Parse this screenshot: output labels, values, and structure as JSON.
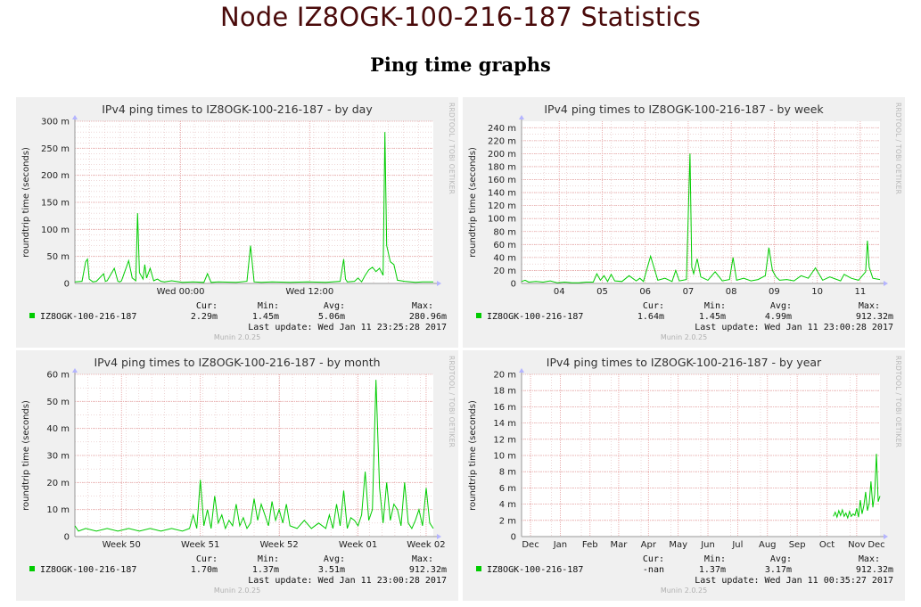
{
  "page": {
    "title": "Node IZ8OGK-100-216-187 Statistics",
    "section": "Ping time graphs"
  },
  "colors": {
    "series": "#00cc00",
    "grid_major": "#e6a0a0",
    "grid_minor": "#dcb0b0",
    "panel_bg": "#f0f0f0",
    "plot_bg": "#ffffff",
    "title": "#4a0a0a"
  },
  "chart_data": [
    {
      "type": "line",
      "title": "IPv4 ping times to IZ8OGK-100-216-187 - by day",
      "ylabel": "roundtrip time (seconds)",
      "xlabel": "",
      "ylim": [
        0,
        300
      ],
      "yticks": [
        0,
        50,
        100,
        150,
        200,
        250,
        300
      ],
      "ytick_labels": [
        "0",
        "50 m",
        "100 m",
        "150 m",
        "200 m",
        "250 m",
        "300 m"
      ],
      "xlim": [
        0,
        100
      ],
      "xticks": [
        {
          "pos": 29.5,
          "label": "Wed 00:00"
        },
        {
          "pos": 65.5,
          "label": "Wed 12:00"
        }
      ],
      "xgrid_minor": 24,
      "ygrid_minor": 30,
      "series": [
        {
          "name": "IZ8OGK-100-216-187",
          "x": [
            0,
            2,
            3,
            3.5,
            4,
            5,
            6,
            8,
            8.5,
            9,
            11,
            12,
            12.5,
            13,
            15,
            16,
            17,
            17.5,
            18,
            19,
            19.5,
            20,
            21,
            22,
            23,
            24,
            25,
            27,
            30,
            33,
            36,
            37,
            38,
            40,
            45,
            48,
            49,
            50,
            52,
            55,
            60,
            65,
            70,
            74,
            75,
            75.5,
            76,
            78,
            79,
            80,
            81,
            82,
            83,
            84,
            85,
            86,
            86.5,
            87,
            88,
            89,
            90,
            92,
            95,
            97,
            100
          ],
          "y": [
            3,
            4,
            40,
            45,
            8,
            3,
            4,
            18,
            4,
            5,
            28,
            4,
            3,
            5,
            42,
            10,
            5,
            130,
            20,
            8,
            35,
            10,
            28,
            5,
            8,
            4,
            3,
            5,
            2,
            3,
            2,
            18,
            2,
            3,
            2,
            4,
            70,
            3,
            2,
            3,
            2,
            3,
            2,
            4,
            45,
            8,
            3,
            4,
            10,
            3,
            15,
            25,
            30,
            22,
            28,
            15,
            280,
            70,
            40,
            35,
            6,
            4,
            2,
            3,
            3
          ]
        }
      ]
    },
    {
      "type": "line",
      "title": "IPv4 ping times to IZ8OGK-100-216-187 - by week",
      "ylabel": "roundtrip time (seconds)",
      "xlabel": "",
      "ylim": [
        0,
        250
      ],
      "yticks": [
        0,
        20,
        40,
        60,
        80,
        100,
        120,
        140,
        160,
        180,
        200,
        220,
        240
      ],
      "ytick_labels": [
        "0",
        "20 m",
        "40 m",
        "60 m",
        "80 m",
        "100 m",
        "120 m",
        "140 m",
        "160 m",
        "180 m",
        "200 m",
        "220 m",
        "240 m"
      ],
      "xlim": [
        0,
        100
      ],
      "xticks": [
        {
          "pos": 10.5,
          "label": "04"
        },
        {
          "pos": 22.5,
          "label": "05"
        },
        {
          "pos": 34.5,
          "label": "06"
        },
        {
          "pos": 46.5,
          "label": "07"
        },
        {
          "pos": 58.5,
          "label": "08"
        },
        {
          "pos": 70.5,
          "label": "09"
        },
        {
          "pos": 82.5,
          "label": "10"
        },
        {
          "pos": 94.5,
          "label": "11"
        }
      ],
      "xgrid_minor": 16,
      "ygrid_minor": 25,
      "series": [
        {
          "name": "IZ8OGK-100-216-187",
          "x": [
            0,
            1,
            2,
            4,
            6,
            8,
            10,
            12,
            14,
            16,
            18,
            20,
            21,
            22,
            23,
            24,
            25,
            26,
            28,
            30,
            32,
            33,
            34,
            36,
            38,
            40,
            42,
            43,
            44,
            46,
            47,
            47.5,
            48,
            49,
            50,
            52,
            54,
            56,
            58,
            59,
            60,
            62,
            64,
            66,
            68,
            69,
            70,
            71,
            72,
            74,
            76,
            78,
            80,
            82,
            84,
            86,
            88,
            89,
            90,
            92,
            94,
            96,
            96.5,
            97,
            98,
            100
          ],
          "y": [
            3,
            5,
            2,
            3,
            2,
            4,
            1,
            2,
            1,
            1,
            2,
            2,
            15,
            5,
            12,
            3,
            14,
            4,
            3,
            12,
            4,
            8,
            3,
            42,
            5,
            8,
            3,
            20,
            4,
            6,
            200,
            25,
            15,
            38,
            10,
            5,
            18,
            4,
            6,
            40,
            5,
            8,
            4,
            6,
            12,
            55,
            20,
            10,
            5,
            6,
            4,
            12,
            8,
            24,
            5,
            10,
            6,
            4,
            14,
            8,
            5,
            18,
            66,
            25,
            8,
            6
          ]
        }
      ]
    },
    {
      "type": "line",
      "title": "IPv4 ping times to IZ8OGK-100-216-187 - by month",
      "ylabel": "roundtrip time (seconds)",
      "xlabel": "",
      "ylim": [
        0,
        60
      ],
      "yticks": [
        0,
        10,
        20,
        30,
        40,
        50,
        60
      ],
      "ytick_labels": [
        "0",
        "10 m",
        "20 m",
        "30 m",
        "40 m",
        "50 m",
        "60 m"
      ],
      "xlim": [
        0,
        100
      ],
      "xticks": [
        {
          "pos": 13,
          "label": "Week 50"
        },
        {
          "pos": 35,
          "label": "Week 51"
        },
        {
          "pos": 57,
          "label": "Week 52"
        },
        {
          "pos": 79,
          "label": "Week 01"
        },
        {
          "pos": 98,
          "label": "Week 02"
        }
      ],
      "xgrid_minor": 28,
      "ygrid_minor": 12,
      "series": [
        {
          "name": "IZ8OGK-100-216-187",
          "x": [
            0,
            1,
            3,
            6,
            9,
            12,
            15,
            18,
            21,
            24,
            27,
            30,
            32,
            33,
            34,
            35,
            36,
            37,
            38,
            39,
            40,
            41,
            42,
            43,
            44,
            45,
            46,
            47,
            48,
            49,
            50,
            51,
            52,
            53,
            54,
            55,
            56,
            57,
            58,
            59,
            60,
            62,
            64,
            66,
            68,
            70,
            71,
            72,
            73,
            74,
            75,
            76,
            77,
            78,
            79,
            80,
            81,
            82,
            83,
            84,
            85,
            86,
            87,
            88,
            89,
            90,
            91,
            92,
            93,
            94,
            95,
            96,
            97,
            98,
            99,
            100
          ],
          "y": [
            4,
            2,
            3,
            2,
            3,
            2,
            3,
            2,
            3,
            2,
            3,
            2,
            3,
            8,
            3,
            21,
            4,
            10,
            3,
            15,
            5,
            8,
            3,
            6,
            4,
            12,
            4,
            7,
            3,
            5,
            14,
            6,
            12,
            8,
            4,
            13,
            6,
            10,
            5,
            12,
            4,
            3,
            6,
            3,
            5,
            3,
            8,
            3,
            12,
            4,
            17,
            3,
            7,
            6,
            4,
            8,
            24,
            6,
            10,
            58,
            18,
            5,
            20,
            6,
            12,
            10,
            4,
            20,
            5,
            3,
            6,
            10,
            4,
            18,
            5,
            3
          ]
        }
      ]
    },
    {
      "type": "line",
      "title": "IPv4 ping times to IZ8OGK-100-216-187 - by year",
      "ylabel": "roundtrip time (seconds)",
      "xlabel": "",
      "ylim": [
        0,
        20
      ],
      "yticks": [
        0,
        2,
        4,
        6,
        8,
        10,
        12,
        14,
        16,
        18,
        20
      ],
      "ytick_labels": [
        "0",
        "2 m",
        "4 m",
        "6 m",
        "8 m",
        "10 m",
        "12 m",
        "14 m",
        "16 m",
        "18 m",
        "20 m"
      ],
      "xlim": [
        0,
        100
      ],
      "xticks": [
        {
          "pos": 2.5,
          "label": "Dec"
        },
        {
          "pos": 10.8,
          "label": "Jan"
        },
        {
          "pos": 19.1,
          "label": "Feb"
        },
        {
          "pos": 27.1,
          "label": "Mar"
        },
        {
          "pos": 35.4,
          "label": "Apr"
        },
        {
          "pos": 43.7,
          "label": "May"
        },
        {
          "pos": 52,
          "label": "Jun"
        },
        {
          "pos": 60.3,
          "label": "Jul"
        },
        {
          "pos": 68.6,
          "label": "Aug"
        },
        {
          "pos": 76.9,
          "label": "Sep"
        },
        {
          "pos": 85.2,
          "label": "Oct"
        },
        {
          "pos": 93.5,
          "label": "Nov"
        },
        {
          "pos": 101.5,
          "label": "Dec"
        }
      ],
      "xgrid_minor": 12,
      "ygrid_minor": 10,
      "series": [
        {
          "name": "IZ8OGK-100-216-187",
          "x": [
            87,
            87.5,
            88,
            88.5,
            89,
            89.5,
            90,
            90.5,
            91,
            91.5,
            92,
            92.5,
            93,
            93.5,
            94,
            94.5,
            95,
            95.5,
            96,
            96.5,
            97,
            97.5,
            98,
            98.5,
            99,
            99.5,
            100
          ],
          "y": [
            2.5,
            3.0,
            2.4,
            3.2,
            2.6,
            3.3,
            2.5,
            2.9,
            2.3,
            3.1,
            2.5,
            2.8,
            2.6,
            3.5,
            2.4,
            4.5,
            2.8,
            3.8,
            5.5,
            3.2,
            4.1,
            6.8,
            3.6,
            5.2,
            10.2,
            4.3,
            5.0
          ]
        }
      ]
    }
  ],
  "panels": [
    {
      "title": "IPv4 ping times to IZ8OGK-100-216-187 - by day",
      "legend_name": "IZ8OGK-100-216-187",
      "cur_label": "Cur:",
      "min_label": "Min:",
      "avg_label": "Avg:",
      "max_label": "Max:",
      "cur": "2.29m",
      "min": "1.45m",
      "avg": "5.06m",
      "max": "280.96m",
      "last_update": "Last update: Wed Jan 11 23:25:28 2017",
      "munin": "Munin 2.0.25",
      "rrdtool": "RRDTOOL / TOBI OETIKER"
    },
    {
      "title": "IPv4 ping times to IZ8OGK-100-216-187 - by week",
      "legend_name": "IZ8OGK-100-216-187",
      "cur_label": "Cur:",
      "min_label": "Min:",
      "avg_label": "Avg:",
      "max_label": "Max:",
      "cur": "1.64m",
      "min": "1.45m",
      "avg": "4.99m",
      "max": "912.32m",
      "last_update": "Last update: Wed Jan 11 23:00:28 2017",
      "munin": "Munin 2.0.25",
      "rrdtool": "RRDTOOL / TOBI OETIKER"
    },
    {
      "title": "IPv4 ping times to IZ8OGK-100-216-187 - by month",
      "legend_name": "IZ8OGK-100-216-187",
      "cur_label": "Cur:",
      "min_label": "Min:",
      "avg_label": "Avg:",
      "max_label": "Max:",
      "cur": "1.70m",
      "min": "1.37m",
      "avg": "3.51m",
      "max": "912.32m",
      "last_update": "Last update: Wed Jan 11 23:00:28 2017",
      "munin": "Munin 2.0.25",
      "rrdtool": "RRDTOOL / TOBI OETIKER"
    },
    {
      "title": "IPv4 ping times to IZ8OGK-100-216-187 - by year",
      "legend_name": "IZ8OGK-100-216-187",
      "cur_label": "Cur:",
      "min_label": "Min:",
      "avg_label": "Avg:",
      "max_label": "Max:",
      "cur": "-nan",
      "min": "1.37m",
      "avg": "3.17m",
      "max": "912.32m",
      "last_update": "Last update: Wed Jan 11 00:35:27 2017",
      "munin": "Munin 2.0.25",
      "rrdtool": "RRDTOOL / TOBI OETIKER"
    }
  ]
}
